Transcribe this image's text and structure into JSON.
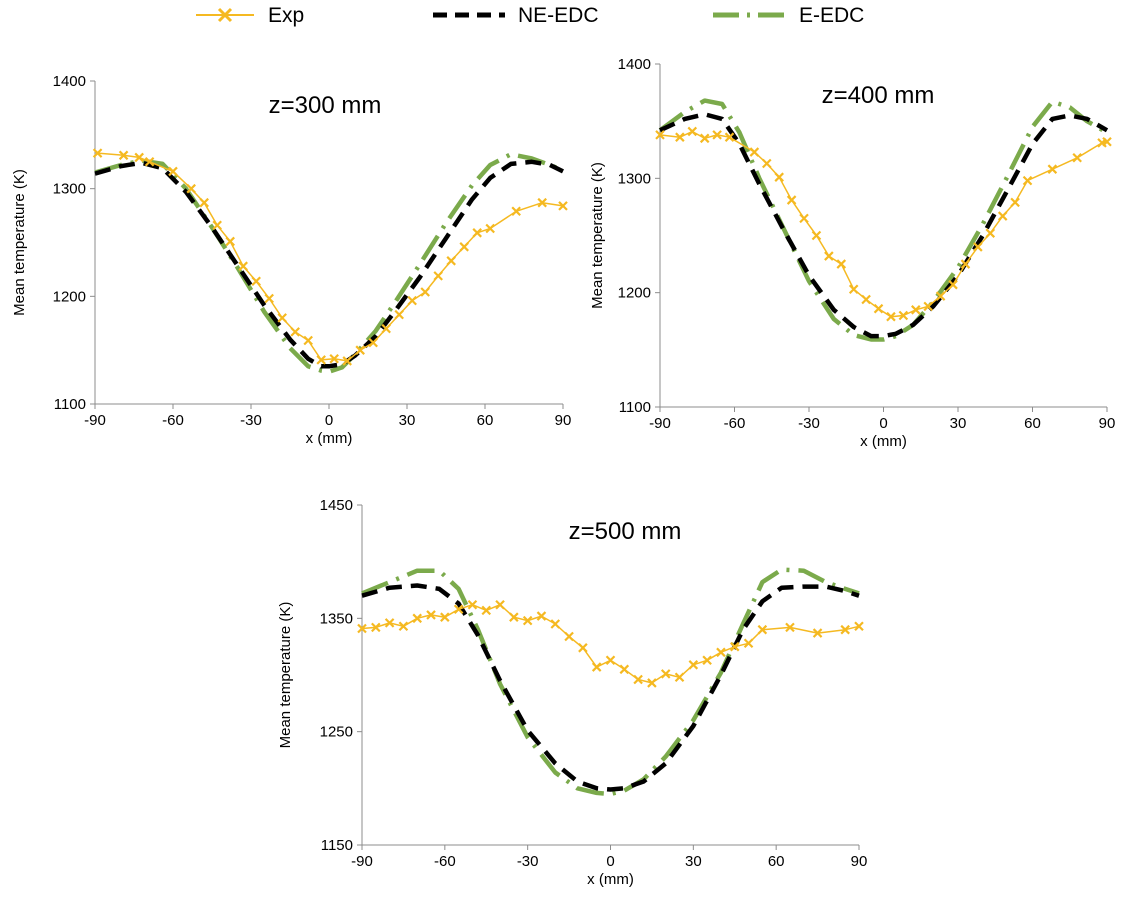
{
  "legend": {
    "entries": [
      {
        "label": "Exp",
        "color": "#F5B921",
        "style": "solid line with x markers"
      },
      {
        "label": "NE-EDC",
        "color": "#000000",
        "style": "dashed"
      },
      {
        "label": "E-EDC",
        "color": "#7BAA4B",
        "style": "dash-dot"
      }
    ],
    "placement": "top-center"
  },
  "chart_data": [
    {
      "type": "line",
      "title": "z=300 mm",
      "xlabel": "x (mm)",
      "ylabel": "Mean temperature  (K)",
      "xlim": [
        -90,
        90
      ],
      "ylim": [
        1100,
        1400
      ],
      "xticks": [
        -90,
        -60,
        -30,
        0,
        30,
        60,
        90
      ],
      "yticks": [
        1100,
        1200,
        1300,
        1400
      ],
      "grid": false,
      "series": [
        {
          "name": "Exp",
          "color": "#F5B921",
          "x": [
            -89,
            -79,
            -73,
            -69,
            -60,
            -53,
            -48,
            -43,
            -38,
            -33,
            -28,
            -23,
            -18,
            -13,
            -8,
            -3,
            2,
            7,
            12,
            17,
            22,
            27,
            32,
            37,
            42,
            47,
            52,
            57,
            62,
            72,
            82,
            90
          ],
          "y": [
            1333,
            1331,
            1329,
            1325,
            1316,
            1300,
            1287,
            1266,
            1251,
            1228,
            1214,
            1198,
            1180,
            1167,
            1159,
            1141,
            1142,
            1140,
            1150,
            1157,
            1170,
            1183,
            1196,
            1204,
            1219,
            1233,
            1246,
            1259,
            1263,
            1279,
            1287,
            1284
          ]
        },
        {
          "name": "NE-EDC",
          "color": "#000000",
          "x": [
            -90,
            -80,
            -72,
            -64,
            -55,
            -45,
            -35,
            -25,
            -15,
            -8,
            -3,
            0,
            5,
            10,
            18,
            25,
            35,
            45,
            55,
            62,
            70,
            78,
            85,
            90
          ],
          "y": [
            1314,
            1321,
            1324,
            1319,
            1297,
            1264,
            1228,
            1192,
            1160,
            1142,
            1135,
            1135,
            1137,
            1145,
            1163,
            1185,
            1218,
            1254,
            1290,
            1310,
            1323,
            1325,
            1322,
            1316
          ]
        },
        {
          "name": "E-EDC",
          "color": "#7BAA4B",
          "x": [
            -90,
            -80,
            -72,
            -64,
            -55,
            -45,
            -35,
            -25,
            -15,
            -8,
            -3,
            0,
            5,
            10,
            18,
            25,
            35,
            45,
            55,
            62,
            70,
            78,
            85,
            90
          ],
          "y": [
            1315,
            1322,
            1326,
            1323,
            1300,
            1264,
            1226,
            1186,
            1152,
            1135,
            1131,
            1130,
            1134,
            1146,
            1168,
            1193,
            1230,
            1268,
            1303,
            1322,
            1332,
            1328,
            1322,
            1317
          ]
        }
      ]
    },
    {
      "type": "line",
      "title": "z=400 mm",
      "xlabel": "x (mm)",
      "ylabel": "Mean temperature  (K)",
      "xlim": [
        -90,
        90
      ],
      "ylim": [
        1100,
        1400
      ],
      "xticks": [
        -90,
        -60,
        -30,
        0,
        30,
        60,
        90
      ],
      "yticks": [
        1100,
        1200,
        1300,
        1400
      ],
      "grid": false,
      "series": [
        {
          "name": "Exp",
          "color": "#F5B921",
          "x": [
            -90,
            -82,
            -77,
            -72,
            -67,
            -62,
            -52,
            -47,
            -42,
            -37,
            -32,
            -27,
            -22,
            -17,
            -12,
            -7,
            -2,
            3,
            8,
            13,
            18,
            23,
            28,
            33,
            38,
            43,
            48,
            53,
            58,
            68,
            78,
            88,
            90
          ],
          "y": [
            1338,
            1336,
            1341,
            1335,
            1338,
            1336,
            1323,
            1313,
            1301,
            1281,
            1265,
            1250,
            1232,
            1225,
            1203,
            1194,
            1186,
            1179,
            1180,
            1185,
            1188,
            1197,
            1207,
            1225,
            1240,
            1252,
            1267,
            1279,
            1298,
            1308,
            1318,
            1331,
            1332
          ]
        },
        {
          "name": "NE-EDC",
          "color": "#000000",
          "x": [
            -90,
            -80,
            -72,
            -65,
            -58,
            -50,
            -40,
            -30,
            -20,
            -12,
            -5,
            0,
            5,
            12,
            20,
            30,
            40,
            50,
            60,
            68,
            75,
            82,
            90
          ],
          "y": [
            1342,
            1352,
            1356,
            1352,
            1330,
            1295,
            1254,
            1215,
            1185,
            1170,
            1162,
            1162,
            1164,
            1172,
            1188,
            1215,
            1250,
            1290,
            1330,
            1352,
            1355,
            1352,
            1342
          ]
        },
        {
          "name": "E-EDC",
          "color": "#7BAA4B",
          "x": [
            -90,
            -80,
            -72,
            -65,
            -58,
            -50,
            -40,
            -30,
            -20,
            -12,
            -5,
            0,
            5,
            12,
            20,
            30,
            40,
            50,
            60,
            68,
            75,
            82,
            90
          ],
          "y": [
            1342,
            1358,
            1368,
            1365,
            1340,
            1300,
            1255,
            1210,
            1177,
            1163,
            1159,
            1159,
            1162,
            1172,
            1192,
            1222,
            1260,
            1302,
            1345,
            1367,
            1362,
            1350,
            1340
          ]
        }
      ]
    },
    {
      "type": "line",
      "title": "z=500 mm",
      "xlabel": "x (mm)",
      "ylabel": "Mean temperature  (K)",
      "xlim": [
        -90,
        90
      ],
      "ylim": [
        1150,
        1450
      ],
      "xticks": [
        -90,
        -60,
        -30,
        0,
        30,
        60,
        90
      ],
      "yticks": [
        1150,
        1250,
        1350,
        1450
      ],
      "grid": false,
      "series": [
        {
          "name": "Exp",
          "color": "#F5B921",
          "x": [
            -90,
            -85,
            -80,
            -75,
            -70,
            -65,
            -60,
            -55,
            -50,
            -45,
            -40,
            -35,
            -30,
            -25,
            -20,
            -15,
            -10,
            -5,
            0,
            5,
            10,
            15,
            20,
            25,
            30,
            35,
            40,
            45,
            50,
            55,
            65,
            75,
            85,
            90
          ],
          "y": [
            1341,
            1342,
            1346,
            1343,
            1350,
            1353,
            1351,
            1358,
            1362,
            1357,
            1362,
            1351,
            1348,
            1352,
            1345,
            1334,
            1324,
            1307,
            1313,
            1305,
            1296,
            1293,
            1301,
            1298,
            1309,
            1313,
            1320,
            1325,
            1328,
            1340,
            1342,
            1337,
            1340,
            1343
          ]
        },
        {
          "name": "NE-EDC",
          "color": "#000000",
          "x": [
            -90,
            -80,
            -70,
            -62,
            -55,
            -48,
            -40,
            -30,
            -20,
            -12,
            -5,
            0,
            5,
            12,
            20,
            30,
            40,
            48,
            55,
            62,
            70,
            78,
            85,
            90
          ],
          "y": [
            1370,
            1377,
            1379,
            1376,
            1363,
            1335,
            1295,
            1251,
            1222,
            1206,
            1200,
            1199,
            1200,
            1206,
            1222,
            1255,
            1300,
            1340,
            1365,
            1377,
            1378,
            1378,
            1374,
            1370
          ]
        },
        {
          "name": "E-EDC",
          "color": "#7BAA4B",
          "x": [
            -90,
            -80,
            -70,
            -62,
            -55,
            -48,
            -40,
            -30,
            -20,
            -12,
            -5,
            0,
            5,
            12,
            20,
            30,
            40,
            48,
            55,
            62,
            70,
            78,
            85,
            90
          ],
          "y": [
            1372,
            1382,
            1392,
            1392,
            1376,
            1340,
            1292,
            1245,
            1214,
            1200,
            1196,
            1195,
            1198,
            1208,
            1228,
            1260,
            1302,
            1345,
            1382,
            1393,
            1392,
            1382,
            1376,
            1372
          ]
        }
      ]
    }
  ]
}
